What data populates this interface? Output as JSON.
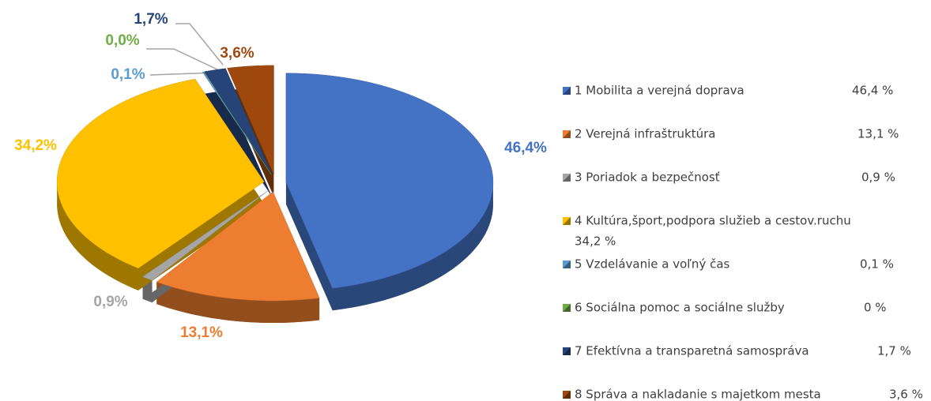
{
  "chart_data": {
    "type": "pie",
    "categories": [
      "1 Mobilita a verejná doprava",
      "2 Verejná infraštruktúra",
      "3 Poriadok a bezpečnosť",
      "4 Kultúra,šport,podpora služieb a cestov.ruchu",
      "5 Vzdelávanie a voľný čas",
      "6 Sociálna pomoc a sociálne služby",
      "7 Efektívna a transparetná samospráva",
      "8 Správa a nakladanie s majetkom mesta"
    ],
    "values": [
      46.4,
      13.1,
      0.9,
      34.2,
      0.1,
      0.0,
      1.7,
      3.6
    ],
    "value_labels": [
      "46,4%",
      "13,1%",
      "0,9%",
      "34,2%",
      "0,1%",
      "0,0%",
      "1,7%",
      "3,6%"
    ],
    "legend_labels": [
      "46,4 %",
      "13,1 %",
      "0,9 %",
      "34,2 %",
      "0,1 %",
      "0 %",
      "1,7 %",
      "3,6 %"
    ],
    "colors": [
      "#4472c4",
      "#ed7d31",
      "#a5a5a5",
      "#ffc000",
      "#5b9bd5",
      "#70ad47",
      "#264478",
      "#9e480e"
    ],
    "legend": "right"
  }
}
